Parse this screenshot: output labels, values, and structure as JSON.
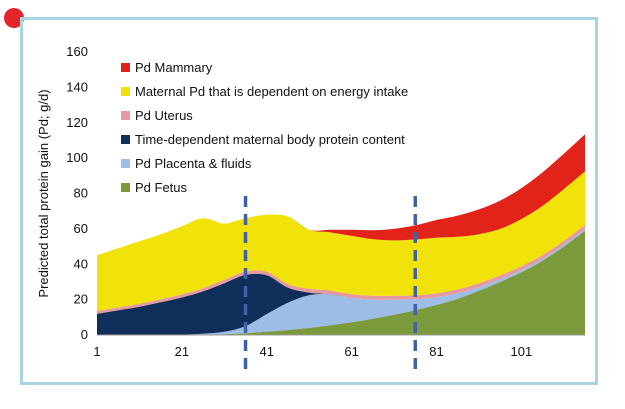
{
  "chart_data": {
    "type": "area",
    "stacked": true,
    "ylabel": "Predicted total protein gain (Pd; g/d)",
    "xlabel": "",
    "ylim": [
      0,
      160
    ],
    "yticks": [
      0,
      20,
      40,
      60,
      80,
      100,
      120,
      140,
      160
    ],
    "xticks": [
      1,
      21,
      41,
      61,
      81,
      101
    ],
    "xlim": [
      1,
      116
    ],
    "vlines": [
      36,
      76
    ],
    "legend_position": "top-left",
    "x": [
      1,
      6,
      11,
      16,
      21,
      26,
      31,
      36,
      41,
      46,
      51,
      56,
      61,
      66,
      71,
      76,
      81,
      86,
      91,
      96,
      101,
      106,
      111,
      116
    ],
    "series": [
      {
        "name": "Pd Fetus",
        "color": "#7a9a3c",
        "values": [
          0,
          0,
          0,
          0,
          0,
          0.2,
          0.5,
          1,
          1.8,
          2.8,
          4,
          5.5,
          7.2,
          9.2,
          11.5,
          14,
          17,
          20.5,
          25,
          30,
          35.5,
          42,
          50,
          59
        ]
      },
      {
        "name": "Pd Placenta & fluids",
        "color": "#9dbce6",
        "values": [
          0,
          0,
          0,
          0,
          0.2,
          0.5,
          1.3,
          4,
          10,
          15.5,
          18.5,
          17.5,
          13.8,
          10.8,
          8.5,
          6.2,
          4.4,
          3.1,
          2.1,
          1.5,
          1.2,
          1,
          1,
          1
        ]
      },
      {
        "name": "Time-dependent maternal body protein content",
        "color": "#102e5a",
        "values": [
          12,
          14,
          16,
          18.5,
          21,
          24,
          27.5,
          29,
          22,
          8.5,
          1.5,
          0,
          0,
          0,
          0,
          0,
          0,
          0,
          0,
          0,
          0,
          0,
          0,
          0
        ]
      },
      {
        "name": "Pd Uterus",
        "color": "#e69aa0",
        "values": [
          1.6,
          1.6,
          1.7,
          1.7,
          1.8,
          1.8,
          1.9,
          1.9,
          2,
          2,
          2.1,
          2.1,
          2.1,
          2.2,
          2.2,
          2.2,
          2.2,
          2.2,
          2.2,
          2.2,
          2.2,
          2.2,
          2.2,
          2.2
        ]
      },
      {
        "name": "Maternal Pd that is dependent on energy intake",
        "color": "#f1e20a",
        "values": [
          31.4,
          33.4,
          35.3,
          36.8,
          38.5,
          39.5,
          31.8,
          30.1,
          32.2,
          38.2,
          33.4,
          32.9,
          32.9,
          32,
          31.3,
          31.6,
          31.4,
          29.7,
          27.7,
          26.3,
          26.6,
          27.8,
          29.3,
          30.3
        ]
      },
      {
        "name": "Pd Mammary",
        "color": "#e2231a",
        "values": [
          0,
          0,
          0,
          0,
          0,
          0,
          0,
          0,
          0,
          0,
          0,
          1.5,
          3.5,
          5,
          6.5,
          8,
          10,
          12,
          14,
          16,
          17.5,
          19,
          20,
          21
        ]
      }
    ]
  }
}
